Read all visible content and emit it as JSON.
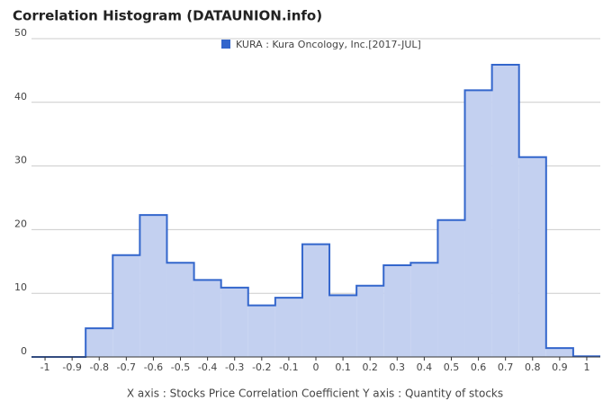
{
  "chart_data": {
    "type": "histogram",
    "title": "Correlation Histogram (DATAUNION.info)",
    "x_label": "X axis : Stocks Price Correlation Coefficient  Y axis : Quantity of stocks",
    "series_name": "KURA : Kura Oncology, Inc.[2017-JUL]",
    "color": "#3366cc",
    "fill": "#c3d0f0",
    "bins": [
      -1.05,
      -0.95,
      -0.85,
      -0.75,
      -0.65,
      -0.55,
      -0.45,
      -0.35,
      -0.25,
      -0.15,
      -0.05,
      0.05,
      0.15,
      0.25,
      0.35,
      0.45,
      0.55,
      0.65,
      0.75,
      0.85,
      0.95,
      1.05
    ],
    "counts": [
      0,
      0,
      4.5,
      16,
      22.3,
      14.8,
      12.1,
      10.9,
      8.1,
      9.3,
      17.7,
      9.7,
      11.2,
      14.4,
      14.8,
      21.5,
      41.9,
      45.9,
      31.4,
      1.4,
      0.1
    ],
    "xlim": [
      -1.05,
      1.05
    ],
    "ylim": [
      0,
      50
    ],
    "xticks": [
      -1,
      -0.9,
      -0.8,
      -0.7,
      -0.6,
      -0.5,
      -0.4,
      -0.3,
      -0.2,
      -0.1,
      0,
      0.1,
      0.2,
      0.3,
      0.4,
      0.5,
      0.6,
      0.7,
      0.8,
      0.9,
      1
    ],
    "yticks": [
      0,
      10,
      20,
      30,
      40,
      50
    ],
    "grid": true,
    "legend": "top"
  }
}
